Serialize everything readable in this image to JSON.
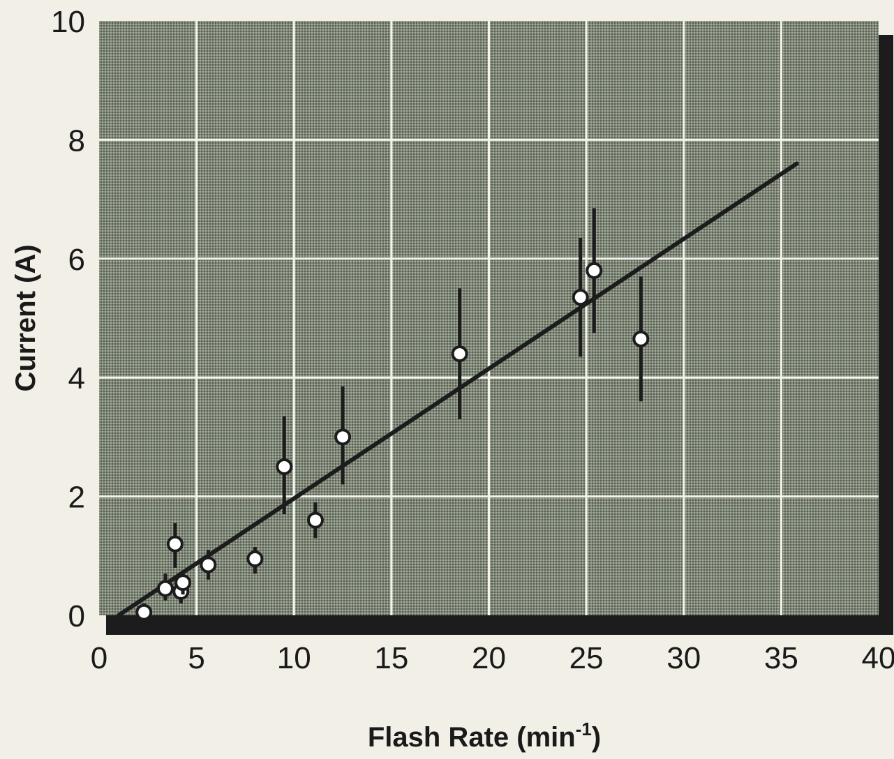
{
  "chart_data": {
    "type": "scatter",
    "title": "",
    "xlabel": "Flash Rate (min",
    "xlabel_superscript": "-1",
    "xlabel_suffix": ")",
    "ylabel": "Current (A)",
    "xlim": [
      0,
      40
    ],
    "ylim": [
      0,
      10
    ],
    "xticks": [
      "0",
      "5",
      "10",
      "15",
      "20",
      "25",
      "30",
      "35",
      "40"
    ],
    "yticks": [
      "0",
      "2",
      "4",
      "6",
      "8",
      "10"
    ],
    "grid": true,
    "plot_background": "#7f8778",
    "grid_color": "#f4f4ec",
    "mark_color": "#1c1c1c",
    "points": [
      {
        "x": 2.3,
        "y": 0.05,
        "err_low": 0.0,
        "err_high": 0.15
      },
      {
        "x": 3.4,
        "y": 0.45,
        "err_low": 0.2,
        "err_high": 0.25
      },
      {
        "x": 3.9,
        "y": 1.2,
        "err_low": 0.4,
        "err_high": 0.35
      },
      {
        "x": 4.2,
        "y": 0.4,
        "err_low": 0.2,
        "err_high": 0.2
      },
      {
        "x": 4.3,
        "y": 0.55,
        "err_low": 0.2,
        "err_high": 0.2
      },
      {
        "x": 5.6,
        "y": 0.85,
        "err_low": 0.25,
        "err_high": 0.25
      },
      {
        "x": 8.0,
        "y": 0.95,
        "err_low": 0.25,
        "err_high": 0.2
      },
      {
        "x": 9.5,
        "y": 2.5,
        "err_low": 0.8,
        "err_high": 0.85
      },
      {
        "x": 11.1,
        "y": 1.6,
        "err_low": 0.3,
        "err_high": 0.3
      },
      {
        "x": 12.5,
        "y": 3.0,
        "err_low": 0.8,
        "err_high": 0.85
      },
      {
        "x": 18.5,
        "y": 4.4,
        "err_low": 1.1,
        "err_high": 1.1
      },
      {
        "x": 24.7,
        "y": 5.35,
        "err_low": 1.0,
        "err_high": 1.0
      },
      {
        "x": 25.4,
        "y": 5.8,
        "err_low": 1.05,
        "err_high": 1.05
      },
      {
        "x": 27.8,
        "y": 4.65,
        "err_low": 1.05,
        "err_high": 1.05
      }
    ],
    "fit_line": {
      "x": [
        1.0,
        35.8
      ],
      "y": [
        0.0,
        7.6
      ]
    }
  }
}
